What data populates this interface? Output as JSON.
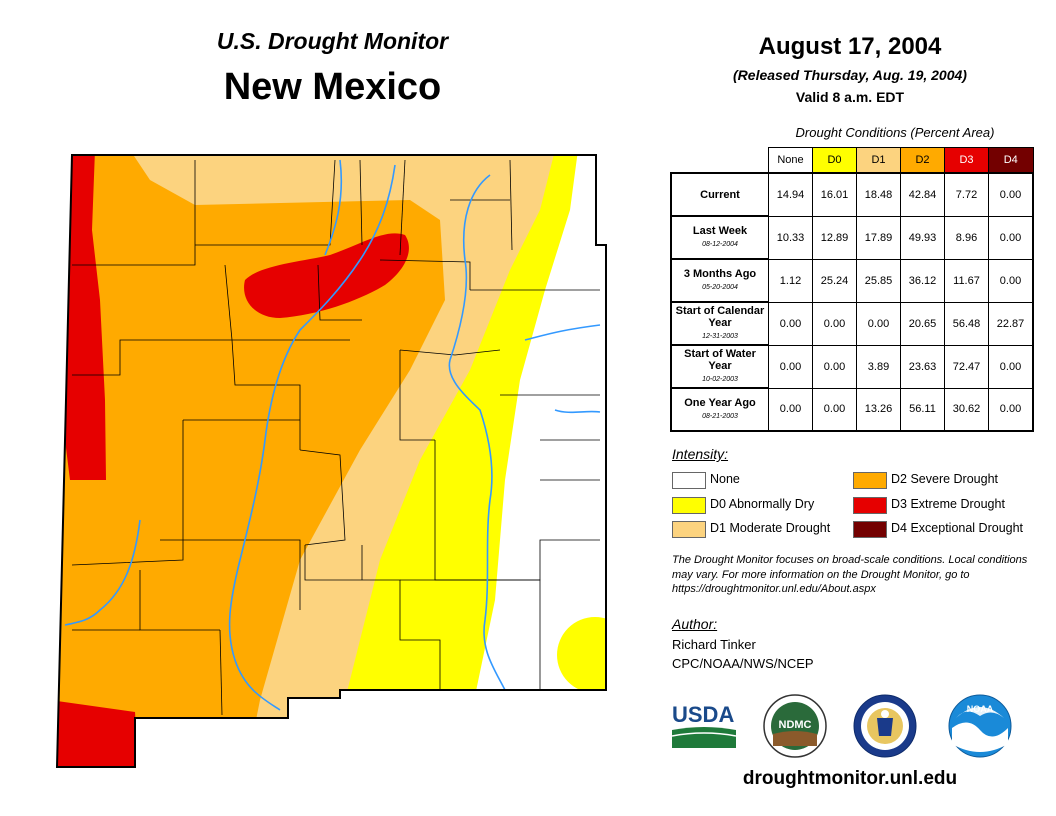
{
  "header": {
    "subtitle": "U.S. Drought Monitor",
    "state": "New Mexico",
    "date": "August 17, 2004",
    "released": "(Released Thursday, Aug. 19, 2004)",
    "valid": "Valid 8 a.m. EDT"
  },
  "table": {
    "title": "Drought Conditions (Percent Area)",
    "columns": [
      {
        "label": "None",
        "color": "#ffffff",
        "text": "#000000"
      },
      {
        "label": "D0",
        "color": "#ffff00",
        "text": "#000000"
      },
      {
        "label": "D1",
        "color": "#fcd37f",
        "text": "#000000"
      },
      {
        "label": "D2",
        "color": "#ffaa00",
        "text": "#000000"
      },
      {
        "label": "D3",
        "color": "#e60000",
        "text": "#ffffff"
      },
      {
        "label": "D4",
        "color": "#730000",
        "text": "#ffffff"
      }
    ],
    "rows": [
      {
        "label": "Current",
        "date": "",
        "values": [
          "14.94",
          "16.01",
          "18.48",
          "42.84",
          "7.72",
          "0.00"
        ]
      },
      {
        "label": "Last Week",
        "date": "08-12-2004",
        "values": [
          "10.33",
          "12.89",
          "17.89",
          "49.93",
          "8.96",
          "0.00"
        ]
      },
      {
        "label": "3 Months Ago",
        "date": "05-20-2004",
        "values": [
          "1.12",
          "25.24",
          "25.85",
          "36.12",
          "11.67",
          "0.00"
        ]
      },
      {
        "label": "Start of Calendar Year",
        "date": "12-31-2003",
        "values": [
          "0.00",
          "0.00",
          "0.00",
          "20.65",
          "56.48",
          "22.87"
        ]
      },
      {
        "label": "Start of Water Year",
        "date": "10-02-2003",
        "values": [
          "0.00",
          "0.00",
          "3.89",
          "23.63",
          "72.47",
          "0.00"
        ]
      },
      {
        "label": "One Year Ago",
        "date": "08-21-2003",
        "values": [
          "0.00",
          "0.00",
          "13.26",
          "56.11",
          "30.62",
          "0.00"
        ]
      }
    ]
  },
  "legend": {
    "title": "Intensity:",
    "items": [
      {
        "label": "None",
        "color": "#ffffff"
      },
      {
        "label": "D0 Abnormally Dry",
        "color": "#ffff00"
      },
      {
        "label": "D1 Moderate Drought",
        "color": "#fcd37f"
      },
      {
        "label": "D2 Severe Drought",
        "color": "#ffaa00"
      },
      {
        "label": "D3 Extreme Drought",
        "color": "#e60000"
      },
      {
        "label": "D4 Exceptional Drought",
        "color": "#730000"
      }
    ]
  },
  "note": "The Drought Monitor focuses on broad-scale conditions. Local conditions may vary. For more information on the Drought Monitor, go to https://droughtmonitor.unl.edu/About.aspx",
  "author": {
    "title": "Author:",
    "name": "Richard Tinker",
    "org": "CPC/NOAA/NWS/NCEP"
  },
  "logos": {
    "usda": "USDA",
    "ndmc": "NDMC",
    "noaa": "NOAA",
    "commerce": "commerce-seal-icon"
  },
  "url": "droughtmonitor.unl.edu"
}
